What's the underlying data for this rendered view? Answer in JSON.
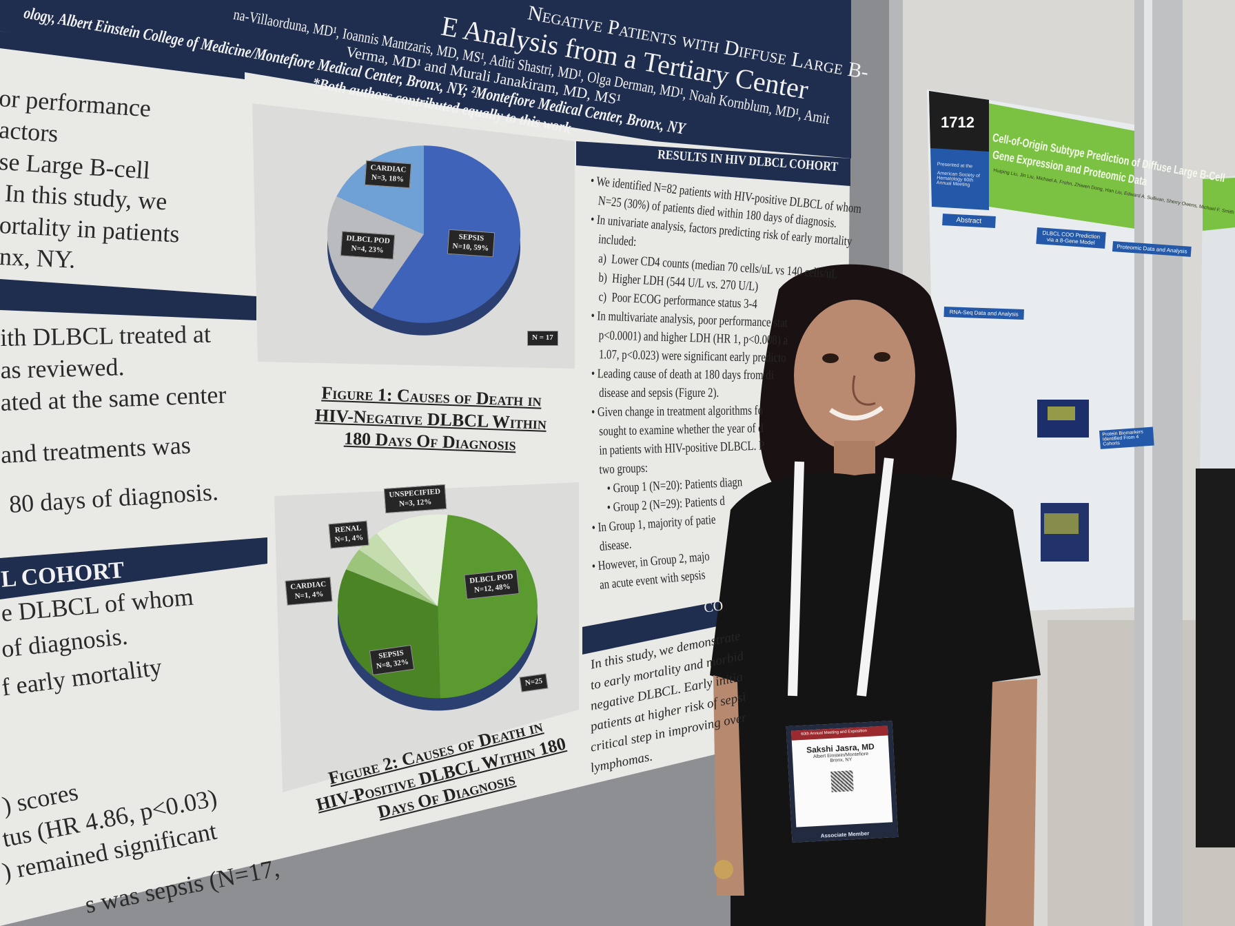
{
  "left_poster": {
    "title_fragments": [
      "Negative Patients with Diffuse Large B-",
      "E Analysis from a Tertiary Center"
    ],
    "authors_line1": "na-Villaorduna, MD¹, Ioannis Mantzaris, MD, MS¹, Aditi Shastri, MD¹, Olga Derman, MD¹, Noah Kornblum, MD¹, Amit",
    "authors_line2": "Verma, MD¹ and Murali Janakiram, MD, MS¹",
    "affiliation": "ology, Albert Einstein College of Medicine/Montefiore Medical Center, Bronx, NY; ²Montefiore Medical Center, Bronx, NY",
    "equal_note": "*Both authors contributed equally to this work",
    "left_column_lines": [
      "or performance",
      "actors",
      "se Large B-cell",
      " In this study, we",
      "ortality in patients",
      "nx, NY.",
      "ith DLBCL treated at",
      "as reviewed.",
      "ated at the same center",
      "and treatments was",
      "80 days of diagnosis."
    ],
    "cohort_heading": "L COHORT",
    "cohort_lines": [
      "e DLBCL of whom",
      " of diagnosis.",
      "f early mortality"
    ],
    "bottom_lines": [
      ") scores",
      "tus (HR 4.86, p<0.03)",
      ") remained significant",
      "s was sepsis (N=17,"
    ],
    "figure1": {
      "caption_lines": [
        "Figure 1: Causes of Death in",
        "HIV-Negative DLBCL Within",
        "180 Days Of Diagnosis"
      ],
      "total_label": "N = 17",
      "slices": [
        {
          "label": "SEPSIS",
          "detail": "N=10, 59%",
          "value": 59,
          "color": "#3f63b8"
        },
        {
          "label": "DLBCL POD",
          "detail": "N=4, 23%",
          "value": 23,
          "color": "#b9bbbf"
        },
        {
          "label": "CARDIAC",
          "detail": "N=3, 18%",
          "value": 18,
          "color": "#6fa1d6"
        }
      ]
    },
    "figure2": {
      "caption_lines": [
        "Figure 2: Causes of Death in",
        "HIV-Positive DLBCL Within 180",
        "Days Of Diagnosis"
      ],
      "total_label": "N=25",
      "slices": [
        {
          "label": "DLBCL POD",
          "detail": "N=12, 48%",
          "value": 48,
          "color": "#5a9a2e"
        },
        {
          "label": "SEPSIS",
          "detail": "N=8, 32%",
          "value": 32,
          "color": "#4a8424"
        },
        {
          "label": "CARDIAC",
          "detail": "N=1, 4%",
          "value": 4,
          "color": "#9cc47a"
        },
        {
          "label": "RENAL",
          "detail": "N=1, 4%",
          "value": 4,
          "color": "#c4dcae"
        },
        {
          "label": "UNSPECIFIED",
          "detail": "N=3, 12%",
          "value": 12,
          "color": "#e6efdc"
        }
      ]
    },
    "results": {
      "heading": "RESULTS IN HIV DLBCL COHORT",
      "lines": [
        "• We identified N=82 patients with HIV-positive DLBCL of whom",
        "   N=25 (30%) of patients died within 180 days of diagnosis.",
        "• In univariate analysis, factors predicting risk of early mortality",
        "   included:",
        "   a)  Lower CD4 counts (median 70 cells/uL vs 140 cells/uL",
        "   b)  Higher LDH (544 U/L vs. 270 U/L)",
        "   c)  Poor ECOG performance status 3-4",
        "• In multivariate analysis, poor performance stat",
        "   p<0.0001) and higher LDH (HR 1, p<0.008) a",
        "   1.07, p<0.023) were significant early predicto",
        "• Leading cause of death at 180 days from di",
        "   disease and sepsis (Figure 2).",
        "• Given change in treatment algorithms fo",
        "   sought to examine whether the year of d",
        "   in patients with HIV-positive DLBCL. P",
        "   two groups:",
        "      • Group 1 (N=20): Patients diagn",
        "      • Group 2 (N=29): Patients d",
        "• In Group 1, majority of patie",
        "   disease.",
        "• However, in Group 2, majo",
        "   an acute event with sepsis"
      ],
      "conclusion_heading": "CO",
      "conclusion_lines": [
        "In this study, we demonstrate",
        "to early mortality and morbid",
        "negative DLBCL. Early initia",
        "patients at higher risk of sepsi",
        "critical step in improving over",
        "lymphomas."
      ]
    }
  },
  "right_poster": {
    "number": "1712",
    "presented": "Presented at the",
    "meeting": "American Society of Hematology 60th Annual Meeting",
    "title_line1": "Cell-of-Origin Subtype Prediction of Diffuse Large B-Cell",
    "title_line2": "Gene Expression and Proteomic Data",
    "authors": "Huiping Liu, Jin Liu, Michael A. Frohn, Zhiwen Dong, Han Liu, Edward A. Sullivan, Sherry Owens, Michael F. Smith",
    "sections": [
      "Abstract",
      "DLBCL COO Prediction via a 8-Gene Model",
      "Proteomic Data and Analysis",
      "RNA-Seq Data and Analysis",
      "Protein Biomarkers Identified From 4 Cohorts"
    ],
    "brand_green": "#7cc242",
    "brand_blue": "#2458a8"
  },
  "badge": {
    "event": "60th Annual Meeting and Exposition",
    "name": "Sakshi Jasra, MD",
    "institution": "Albert Einstein/Montefiore",
    "city": "Bronx, NY",
    "member_type": "Associate Member"
  },
  "colors": {
    "navy": "#1f2d4e",
    "poster_white": "#ececea",
    "board_gray": "#8d8f92"
  }
}
